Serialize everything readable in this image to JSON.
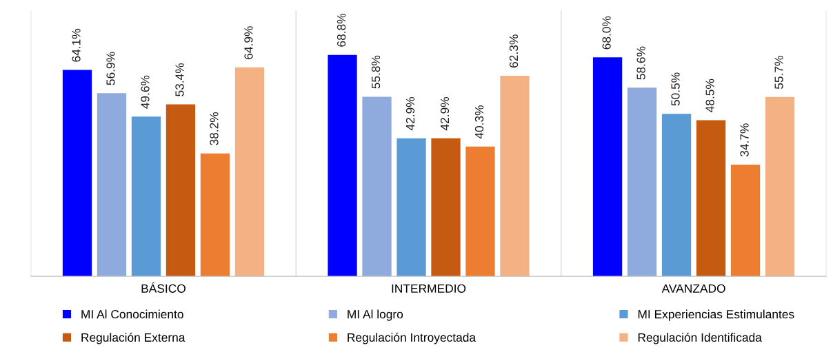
{
  "chart_data": {
    "type": "bar",
    "categories": [
      "BÁSICO",
      "INTERMEDIO",
      "AVANZADO"
    ],
    "series": [
      {
        "name": "MI Al Conocimiento",
        "color": "#0000ff",
        "values": [
          64.1,
          68.8,
          68.0
        ],
        "value_labels": [
          "64.1%",
          "68.8%",
          "68.0%"
        ]
      },
      {
        "name": "MI Al logro",
        "color": "#8faadc",
        "values": [
          56.9,
          55.8,
          58.6
        ],
        "value_labels": [
          "56.9%",
          "55.8%",
          "58.6%"
        ]
      },
      {
        "name": "MI Experiencias Estimulantes",
        "color": "#5b9bd5",
        "values": [
          49.6,
          42.9,
          50.5
        ],
        "value_labels": [
          "49.6%",
          "42.9%",
          "50.5%"
        ]
      },
      {
        "name": "Regulación Externa",
        "color": "#c55a11",
        "values": [
          53.4,
          42.9,
          48.5
        ],
        "value_labels": [
          "53.4%",
          "42.9%",
          "48.5%"
        ]
      },
      {
        "name": "Regulación Introyectada",
        "color": "#ed7d31",
        "values": [
          38.2,
          40.3,
          34.7
        ],
        "value_labels": [
          "38.2%",
          "40.3%",
          "34.7%"
        ]
      },
      {
        "name": "Regulación Identificada",
        "color": "#f4b183",
        "values": [
          64.9,
          62.3,
          55.7
        ],
        "value_labels": [
          "64.9%",
          "62.3%",
          "55.7%"
        ]
      }
    ],
    "grid": false,
    "legend": "bottom"
  }
}
